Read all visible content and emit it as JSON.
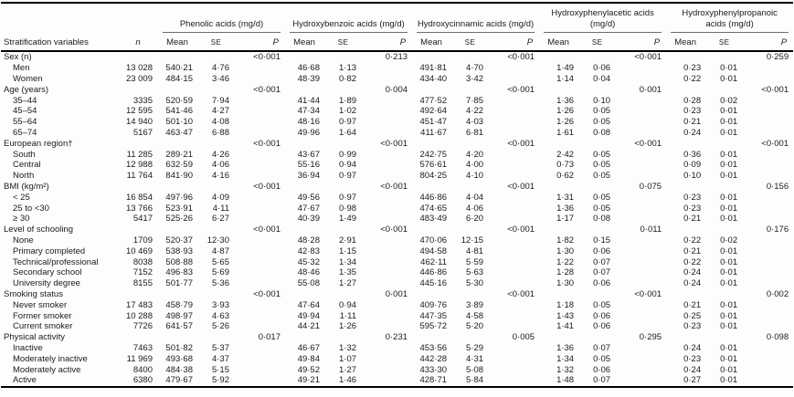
{
  "table": {
    "col1_header": "Stratification variables",
    "n_header": "n",
    "sub_headers": {
      "mean": "Mean",
      "se": "SE",
      "p": "P"
    },
    "groups": [
      {
        "label": "Phenolic acids (mg/d)"
      },
      {
        "label": "Hydroxybenzoic acids (mg/d)"
      },
      {
        "label": "Hydroxycinnamic acids (mg/d)"
      },
      {
        "label": "Hydroxyphenylacetic acids (mg/d)"
      },
      {
        "label": "Hydroxyphenylpropanoic acids (mg/d)"
      }
    ],
    "rows": [
      {
        "type": "section",
        "label": "Sex (n)",
        "p": [
          "<0·001",
          "0·213",
          "<0·001",
          "<0·001",
          "0·259"
        ]
      },
      {
        "type": "item",
        "label": "Men",
        "n": "13 028",
        "values": [
          [
            "540·21",
            "4·76"
          ],
          [
            "46·68",
            "1·13"
          ],
          [
            "491·81",
            "4·70"
          ],
          [
            "1·49",
            "0·06"
          ],
          [
            "0·23",
            "0·01"
          ]
        ]
      },
      {
        "type": "item",
        "label": "Women",
        "n": "23 009",
        "values": [
          [
            "484·15",
            "3·46"
          ],
          [
            "48·39",
            "0·82"
          ],
          [
            "434·40",
            "3·42"
          ],
          [
            "1·14",
            "0·04"
          ],
          [
            "0·22",
            "0·01"
          ]
        ]
      },
      {
        "type": "section",
        "label": "Age (years)",
        "p": [
          "<0·001",
          "0·004",
          "<0·001",
          "0·001",
          "<0·001"
        ]
      },
      {
        "type": "item",
        "label": "35–44",
        "n": "3335",
        "values": [
          [
            "520·59",
            "7·94"
          ],
          [
            "41·44",
            "1·89"
          ],
          [
            "477·52",
            "7·85"
          ],
          [
            "1·36",
            "0·10"
          ],
          [
            "0·28",
            "0·02"
          ]
        ]
      },
      {
        "type": "item",
        "label": "45–54",
        "n": "12 595",
        "values": [
          [
            "541·46",
            "4·27"
          ],
          [
            "47·34",
            "1·02"
          ],
          [
            "492·64",
            "4·22"
          ],
          [
            "1·26",
            "0·05"
          ],
          [
            "0·23",
            "0·01"
          ]
        ]
      },
      {
        "type": "item",
        "label": "55–64",
        "n": "14 940",
        "values": [
          [
            "501·10",
            "4·08"
          ],
          [
            "48·16",
            "0·97"
          ],
          [
            "451·47",
            "4·03"
          ],
          [
            "1·26",
            "0·05"
          ],
          [
            "0·21",
            "0·01"
          ]
        ]
      },
      {
        "type": "item",
        "label": "65–74",
        "n": "5167",
        "values": [
          [
            "463·47",
            "6·88"
          ],
          [
            "49·96",
            "1·64"
          ],
          [
            "411·67",
            "6·81"
          ],
          [
            "1·61",
            "0·08"
          ],
          [
            "0·24",
            "0·01"
          ]
        ]
      },
      {
        "type": "section",
        "label": "European region†",
        "p": [
          "<0·001",
          "<0·001",
          "<0·001",
          "<0·001",
          "<0·001"
        ]
      },
      {
        "type": "item",
        "label": "South",
        "n": "11 285",
        "values": [
          [
            "289·21",
            "4·26"
          ],
          [
            "43·67",
            "0·99"
          ],
          [
            "242·75",
            "4·20"
          ],
          [
            "2·42",
            "0·05"
          ],
          [
            "0·36",
            "0·01"
          ]
        ]
      },
      {
        "type": "item",
        "label": "Central",
        "n": "12 988",
        "values": [
          [
            "632·59",
            "4·06"
          ],
          [
            "55·16",
            "0·94"
          ],
          [
            "576·61",
            "4·00"
          ],
          [
            "0·73",
            "0·05"
          ],
          [
            "0·09",
            "0·01"
          ]
        ]
      },
      {
        "type": "item",
        "label": "North",
        "n": "11 764",
        "values": [
          [
            "841·90",
            "4·16"
          ],
          [
            "36·94",
            "0·97"
          ],
          [
            "804·25",
            "4·10"
          ],
          [
            "0·62",
            "0·05"
          ],
          [
            "0·10",
            "0·01"
          ]
        ]
      },
      {
        "type": "section",
        "label": "BMI (kg/m²)",
        "p": [
          "<0·001",
          "<0·001",
          "<0·001",
          "0·075",
          "0·156"
        ]
      },
      {
        "type": "item",
        "label": "< 25",
        "n": "16 854",
        "values": [
          [
            "497·96",
            "4·09"
          ],
          [
            "49·56",
            "0·97"
          ],
          [
            "446·86",
            "4·04"
          ],
          [
            "1·31",
            "0·05"
          ],
          [
            "0·23",
            "0·01"
          ]
        ]
      },
      {
        "type": "item",
        "label": "25 to <30",
        "n": "13 766",
        "values": [
          [
            "523·91",
            "4·11"
          ],
          [
            "47·67",
            "0·98"
          ],
          [
            "474·65",
            "4·06"
          ],
          [
            "1·36",
            "0·05"
          ],
          [
            "0·23",
            "0·01"
          ]
        ]
      },
      {
        "type": "item",
        "label": "≥ 30",
        "n": "5417",
        "values": [
          [
            "525·26",
            "6·27"
          ],
          [
            "40·39",
            "1·49"
          ],
          [
            "483·49",
            "6·20"
          ],
          [
            "1·17",
            "0·08"
          ],
          [
            "0·21",
            "0·01"
          ]
        ]
      },
      {
        "type": "section",
        "label": "Level of schooling",
        "p": [
          "<0·001",
          "<0·001",
          "<0·001",
          "0·011",
          "0·176"
        ]
      },
      {
        "type": "item",
        "label": "None",
        "n": "1709",
        "values": [
          [
            "520·37",
            "12·30"
          ],
          [
            "48·28",
            "2·91"
          ],
          [
            "470·06",
            "12·15"
          ],
          [
            "1·82",
            "0·15"
          ],
          [
            "0·22",
            "0·02"
          ]
        ]
      },
      {
        "type": "item",
        "label": "Primary completed",
        "n": "10 469",
        "values": [
          [
            "538·93",
            "4·87"
          ],
          [
            "42·83",
            "1·15"
          ],
          [
            "494·58",
            "4·81"
          ],
          [
            "1·30",
            "0·06"
          ],
          [
            "0·21",
            "0·01"
          ]
        ]
      },
      {
        "type": "item",
        "label": "Technical/professional",
        "n": "8038",
        "values": [
          [
            "508·88",
            "5·65"
          ],
          [
            "45·32",
            "1·34"
          ],
          [
            "462·11",
            "5·59"
          ],
          [
            "1·22",
            "0·07"
          ],
          [
            "0·22",
            "0·01"
          ]
        ]
      },
      {
        "type": "item",
        "label": "Secondary school",
        "n": "7152",
        "values": [
          [
            "496·83",
            "5·69"
          ],
          [
            "48·46",
            "1·35"
          ],
          [
            "446·86",
            "5·63"
          ],
          [
            "1·28",
            "0·07"
          ],
          [
            "0·24",
            "0·01"
          ]
        ]
      },
      {
        "type": "item",
        "label": "University degree",
        "n": "8155",
        "values": [
          [
            "501·77",
            "5·36"
          ],
          [
            "55·08",
            "1·27"
          ],
          [
            "445·16",
            "5·30"
          ],
          [
            "1·30",
            "0·06"
          ],
          [
            "0·24",
            "0·01"
          ]
        ]
      },
      {
        "type": "section",
        "label": "Smoking status",
        "p": [
          "<0·001",
          "0·001",
          "<0·001",
          "<0·001",
          "0·002"
        ]
      },
      {
        "type": "item",
        "label": "Never smoker",
        "n": "17 483",
        "values": [
          [
            "458·79",
            "3·93"
          ],
          [
            "47·64",
            "0·94"
          ],
          [
            "409·76",
            "3·89"
          ],
          [
            "1·18",
            "0·05"
          ],
          [
            "0·21",
            "0·01"
          ]
        ]
      },
      {
        "type": "item",
        "label": "Former smoker",
        "n": "10 288",
        "values": [
          [
            "498·97",
            "4·63"
          ],
          [
            "49·94",
            "1·11"
          ],
          [
            "447·35",
            "4·58"
          ],
          [
            "1·43",
            "0·06"
          ],
          [
            "0·25",
            "0·01"
          ]
        ]
      },
      {
        "type": "item",
        "label": "Current smoker",
        "n": "7726",
        "values": [
          [
            "641·57",
            "5·26"
          ],
          [
            "44·21",
            "1·26"
          ],
          [
            "595·72",
            "5·20"
          ],
          [
            "1·41",
            "0·06"
          ],
          [
            "0·23",
            "0·01"
          ]
        ]
      },
      {
        "type": "section",
        "label": "Physical activity",
        "p": [
          "0·017",
          "0·231",
          "0·005",
          "0·295",
          "0·098"
        ]
      },
      {
        "type": "item",
        "label": "Inactive",
        "n": "7463",
        "values": [
          [
            "501·82",
            "5·37"
          ],
          [
            "46·67",
            "1·32"
          ],
          [
            "453·56",
            "5·29"
          ],
          [
            "1·36",
            "0·07"
          ],
          [
            "0·24",
            "0·01"
          ]
        ]
      },
      {
        "type": "item",
        "label": "Moderately inactive",
        "n": "11 969",
        "values": [
          [
            "493·68",
            "4·37"
          ],
          [
            "49·84",
            "1·07"
          ],
          [
            "442·28",
            "4·31"
          ],
          [
            "1·34",
            "0·05"
          ],
          [
            "0·23",
            "0·01"
          ]
        ]
      },
      {
        "type": "item",
        "label": "Moderately active",
        "n": "8400",
        "values": [
          [
            "484·38",
            "5·15"
          ],
          [
            "49·52",
            "1·27"
          ],
          [
            "433·30",
            "5·08"
          ],
          [
            "1·32",
            "0·06"
          ],
          [
            "0·24",
            "0·01"
          ]
        ]
      },
      {
        "type": "item",
        "label": "Active",
        "n": "6380",
        "values": [
          [
            "479·67",
            "5·92"
          ],
          [
            "49·21",
            "1·46"
          ],
          [
            "428·71",
            "5·84"
          ],
          [
            "1·48",
            "0·07"
          ],
          [
            "0·27",
            "0·01"
          ]
        ]
      }
    ]
  }
}
